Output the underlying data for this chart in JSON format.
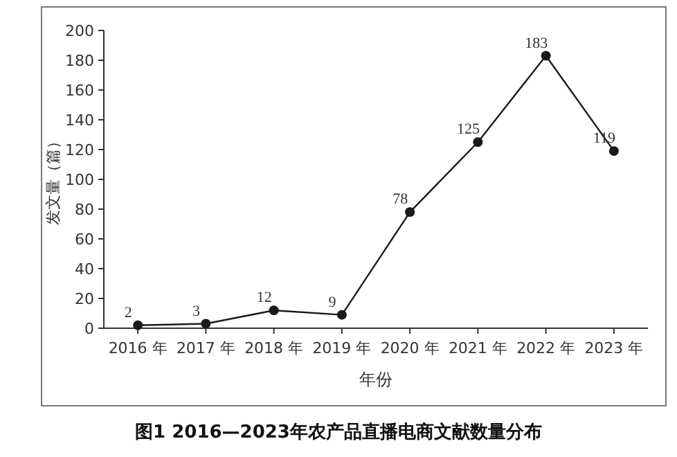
{
  "chart_data": {
    "type": "line",
    "title": "图1  2016—2023年农产品直播电商文献数量分布",
    "xlabel": "年份",
    "ylabel": "发文量（篇）",
    "categories": [
      "2016 年",
      "2017 年",
      "2018 年",
      "2019 年",
      "2020 年",
      "2021 年",
      "2022 年",
      "2023 年"
    ],
    "series": [
      {
        "color": "#1a1a1a",
        "values": [
          2,
          3,
          12,
          9,
          78,
          125,
          183,
          119
        ]
      }
    ],
    "ylim": [
      0,
      200
    ],
    "yticks": [
      0,
      20,
      40,
      60,
      80,
      100,
      120,
      140,
      160,
      180,
      200
    ],
    "grid": false,
    "marker": "circle",
    "line_style": "solid",
    "data_labels": true
  }
}
